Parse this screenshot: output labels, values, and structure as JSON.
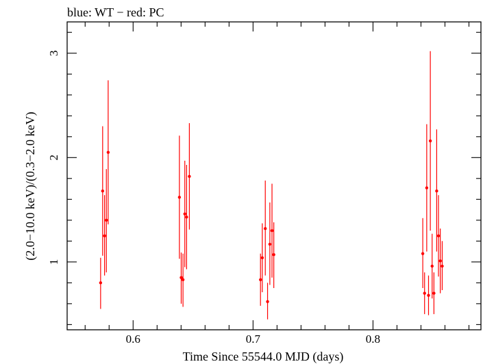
{
  "chart_data": {
    "type": "scatter",
    "title": "blue: WT − red: PC",
    "xlabel": "Time Since 55544.0 MJD (days)",
    "ylabel": "(2.0−10.0 keV)/(0.3−2.0 keV)",
    "xlim": [
      0.545,
      0.89
    ],
    "ylim": [
      0.35,
      3.3
    ],
    "xticks": [
      0.6,
      0.7,
      0.8
    ],
    "xtick_labels": [
      "0.6",
      "0.7",
      "0.8"
    ],
    "yticks": [
      1,
      2,
      3
    ],
    "ytick_labels": [
      "1",
      "2",
      "3"
    ],
    "series": [
      {
        "name": "PC",
        "color": "#ff0000",
        "points": [
          {
            "x": 0.5729,
            "y": 0.8,
            "ylo": 0.55,
            "yhi": 1.04
          },
          {
            "x": 0.5746,
            "y": 1.68,
            "ylo": 1.06,
            "yhi": 2.3
          },
          {
            "x": 0.5762,
            "y": 1.25,
            "ylo": 0.87,
            "yhi": 1.64
          },
          {
            "x": 0.5777,
            "y": 1.4,
            "ylo": 0.9,
            "yhi": 1.89
          },
          {
            "x": 0.5792,
            "y": 2.05,
            "ylo": 1.36,
            "yhi": 2.74
          },
          {
            "x": 0.6386,
            "y": 1.62,
            "ylo": 1.03,
            "yhi": 2.21
          },
          {
            "x": 0.6401,
            "y": 0.85,
            "ylo": 0.6,
            "yhi": 1.09
          },
          {
            "x": 0.6416,
            "y": 0.83,
            "ylo": 0.57,
            "yhi": 1.08
          },
          {
            "x": 0.6431,
            "y": 1.46,
            "ylo": 0.95,
            "yhi": 1.97
          },
          {
            "x": 0.6446,
            "y": 1.43,
            "ylo": 0.93,
            "yhi": 1.93
          },
          {
            "x": 0.6469,
            "y": 1.82,
            "ylo": 1.31,
            "yhi": 2.33
          },
          {
            "x": 0.7062,
            "y": 0.83,
            "ylo": 0.58,
            "yhi": 1.08
          },
          {
            "x": 0.7077,
            "y": 1.04,
            "ylo": 0.71,
            "yhi": 1.37
          },
          {
            "x": 0.7102,
            "y": 1.32,
            "ylo": 0.87,
            "yhi": 1.78
          },
          {
            "x": 0.7121,
            "y": 0.62,
            "ylo": 0.45,
            "yhi": 0.8
          },
          {
            "x": 0.714,
            "y": 1.17,
            "ylo": 0.78,
            "yhi": 1.57
          },
          {
            "x": 0.7158,
            "y": 1.3,
            "ylo": 0.85,
            "yhi": 1.75
          },
          {
            "x": 0.7173,
            "y": 1.07,
            "ylo": 0.75,
            "yhi": 1.38
          },
          {
            "x": 0.8415,
            "y": 1.08,
            "ylo": 0.75,
            "yhi": 1.42
          },
          {
            "x": 0.843,
            "y": 0.7,
            "ylo": 0.5,
            "yhi": 0.9
          },
          {
            "x": 0.8448,
            "y": 1.71,
            "ylo": 1.1,
            "yhi": 2.32
          },
          {
            "x": 0.8463,
            "y": 0.68,
            "ylo": 0.49,
            "yhi": 0.87
          },
          {
            "x": 0.8478,
            "y": 2.16,
            "ylo": 1.3,
            "yhi": 3.02
          },
          {
            "x": 0.8493,
            "y": 0.96,
            "ylo": 0.65,
            "yhi": 1.27
          },
          {
            "x": 0.8508,
            "y": 0.7,
            "ylo": 0.5,
            "yhi": 0.9
          },
          {
            "x": 0.8531,
            "y": 1.68,
            "ylo": 1.1,
            "yhi": 2.27
          },
          {
            "x": 0.8546,
            "y": 1.25,
            "ylo": 0.86,
            "yhi": 1.64
          },
          {
            "x": 0.8561,
            "y": 1.01,
            "ylo": 0.7,
            "yhi": 1.32
          },
          {
            "x": 0.8577,
            "y": 0.96,
            "ylo": 0.73,
            "yhi": 1.2
          }
        ]
      }
    ]
  }
}
